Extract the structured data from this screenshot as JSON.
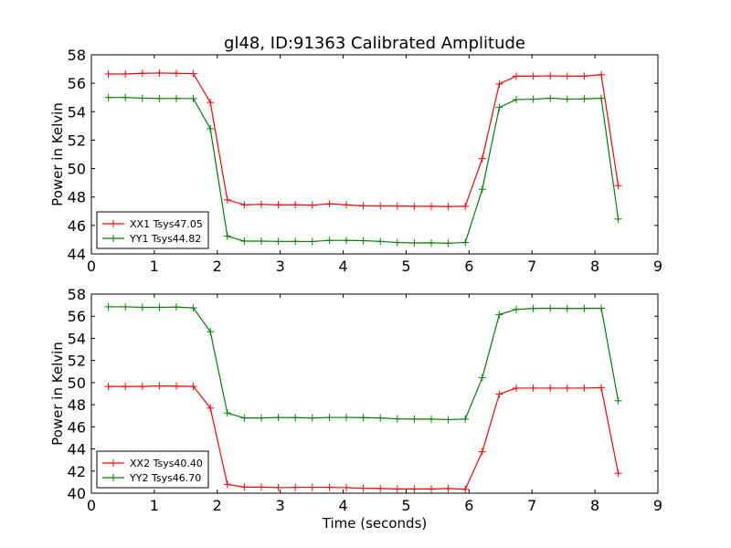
{
  "title": "gl48, ID:91363 Calibrated Amplitude",
  "chart_data": [
    {
      "type": "line",
      "title": "gl48, ID:91363 Calibrated Amplitude",
      "xlabel": "",
      "ylabel": "Power in Kelvin",
      "xlim": [
        0,
        9
      ],
      "ylim": [
        44,
        58
      ],
      "xticks": [
        "0",
        "1",
        "2",
        "3",
        "4",
        "5",
        "6",
        "7",
        "8",
        "9"
      ],
      "yticks": [
        "44",
        "46",
        "48",
        "50",
        "52",
        "54",
        "56",
        "58"
      ],
      "grid": false,
      "legend_position": "lower-left",
      "x": [
        0.27,
        0.54,
        0.81,
        1.08,
        1.35,
        1.62,
        1.89,
        2.16,
        2.43,
        2.7,
        2.97,
        3.24,
        3.51,
        3.78,
        4.05,
        4.32,
        4.59,
        4.86,
        5.13,
        5.4,
        5.67,
        5.94,
        6.21,
        6.48,
        6.75,
        7.02,
        7.29,
        7.56,
        7.83,
        8.1,
        8.37
      ],
      "series": [
        {
          "name": "XX1 Tsys47.05",
          "color": "#ff0000",
          "values": [
            56.65,
            56.65,
            56.7,
            56.72,
            56.7,
            56.68,
            54.65,
            47.8,
            47.45,
            47.48,
            47.45,
            47.45,
            47.43,
            47.52,
            47.45,
            47.38,
            47.37,
            47.37,
            47.35,
            47.35,
            47.33,
            47.35,
            50.7,
            55.95,
            56.5,
            56.5,
            56.52,
            56.5,
            56.5,
            56.6,
            48.8
          ]
        },
        {
          "name": "YY1 Tsys44.82",
          "color": "#008000",
          "values": [
            55.0,
            55.0,
            54.95,
            54.93,
            54.93,
            54.92,
            52.8,
            45.25,
            44.9,
            44.9,
            44.88,
            44.88,
            44.87,
            44.95,
            44.95,
            44.93,
            44.88,
            44.8,
            44.77,
            44.78,
            44.75,
            44.8,
            48.55,
            54.3,
            54.85,
            54.88,
            54.95,
            54.88,
            54.9,
            54.95,
            46.45
          ]
        }
      ]
    },
    {
      "type": "line",
      "title": "",
      "xlabel": "Time (seconds)",
      "ylabel": "Power in Kelvin",
      "xlim": [
        0,
        9
      ],
      "ylim": [
        40,
        58
      ],
      "xticks": [
        "0",
        "1",
        "2",
        "3",
        "4",
        "5",
        "6",
        "7",
        "8",
        "9"
      ],
      "yticks": [
        "40",
        "42",
        "44",
        "46",
        "48",
        "50",
        "52",
        "54",
        "56",
        "58"
      ],
      "grid": false,
      "legend_position": "lower-left",
      "x": [
        0.27,
        0.54,
        0.81,
        1.08,
        1.35,
        1.62,
        1.89,
        2.16,
        2.43,
        2.7,
        2.97,
        3.24,
        3.51,
        3.78,
        4.05,
        4.32,
        4.59,
        4.86,
        5.13,
        5.4,
        5.67,
        5.94,
        6.21,
        6.48,
        6.75,
        7.02,
        7.29,
        7.56,
        7.83,
        8.1,
        8.37
      ],
      "series": [
        {
          "name": "XX2 Tsys40.40",
          "color": "#ff0000",
          "values": [
            49.65,
            49.65,
            49.65,
            49.7,
            49.68,
            49.65,
            47.7,
            40.8,
            40.55,
            40.55,
            40.5,
            40.52,
            40.53,
            40.52,
            40.5,
            40.45,
            40.42,
            40.38,
            40.38,
            40.38,
            40.42,
            40.35,
            43.75,
            48.95,
            49.5,
            49.5,
            49.5,
            49.5,
            49.5,
            49.55,
            41.8
          ]
        },
        {
          "name": "YY2 Tsys46.70",
          "color": "#008000",
          "values": [
            56.85,
            56.85,
            56.8,
            56.8,
            56.83,
            56.75,
            54.6,
            47.25,
            46.8,
            46.8,
            46.85,
            46.83,
            46.8,
            46.85,
            46.85,
            46.83,
            46.8,
            46.72,
            46.7,
            46.7,
            46.65,
            46.7,
            50.45,
            56.15,
            56.62,
            56.7,
            56.72,
            56.7,
            56.7,
            56.72,
            48.35
          ]
        }
      ]
    }
  ]
}
